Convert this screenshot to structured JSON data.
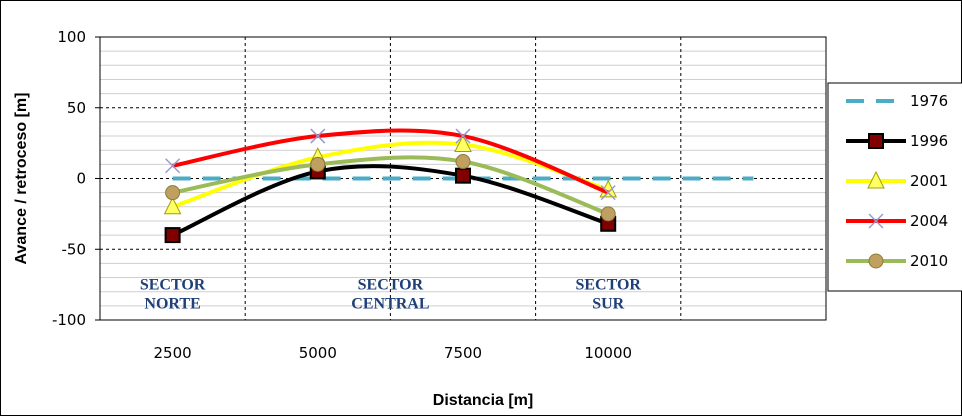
{
  "chart_data": {
    "type": "line",
    "title": "",
    "xlabel": "Distancia [m]",
    "ylabel": "Avance / retroceso [m]",
    "categories": [
      "2500",
      "5000",
      "7500",
      "10000"
    ],
    "x": [
      2500,
      5000,
      7500,
      10000
    ],
    "xlim": [
      1250,
      13750
    ],
    "ylim": [
      -100,
      100
    ],
    "y_ticks": [
      100,
      50,
      0,
      -50,
      -100
    ],
    "grid": true,
    "legend_position": "right",
    "series": [
      {
        "name": "1976",
        "x": [
          2500,
          12500
        ],
        "values": [
          0,
          0
        ],
        "color": "#4bacc6",
        "style": "dashed",
        "marker": "none"
      },
      {
        "name": "1996",
        "values": [
          -40,
          5,
          2,
          -32
        ],
        "color": "#000000",
        "style": "solid",
        "marker": "square",
        "marker_color": "#000000"
      },
      {
        "name": "2001",
        "values": [
          -20,
          15,
          24,
          -8
        ],
        "color": "#ffff00",
        "style": "solid",
        "marker": "triangle",
        "marker_color": "#ffff66"
      },
      {
        "name": "2004",
        "values": [
          9,
          30,
          30,
          -10
        ],
        "color": "#ff0000",
        "style": "solid",
        "marker": "x",
        "marker_color": "#9999cc"
      },
      {
        "name": "2010",
        "values": [
          -10,
          10,
          12,
          -25
        ],
        "color": "#9bbb59",
        "style": "solid",
        "marker": "circle",
        "marker_color": "#c0a060"
      }
    ],
    "annotations": [
      {
        "lines": [
          "SECTOR",
          "NORTE"
        ],
        "x": 2500,
        "y": -80
      },
      {
        "lines": [
          "SECTOR",
          "CENTRAL"
        ],
        "x": 6250,
        "y": -80
      },
      {
        "lines": [
          "SECTOR",
          "SUR"
        ],
        "x": 10000,
        "y": -80
      }
    ]
  }
}
